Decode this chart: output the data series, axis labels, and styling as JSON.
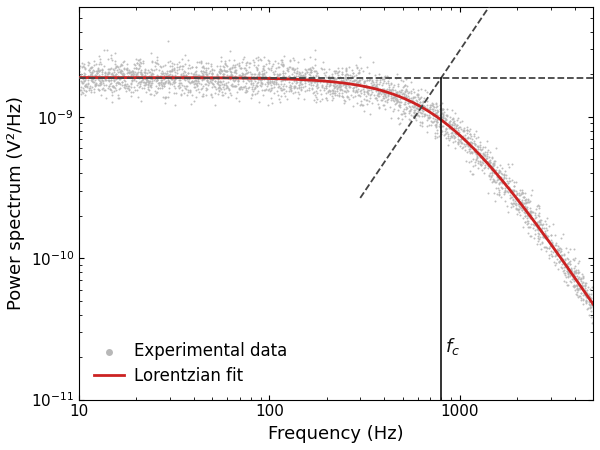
{
  "fc": 800,
  "S0": 1.9e-09,
  "freq_min": 10,
  "freq_max": 5000,
  "ylim_min": 1e-11,
  "ylim_max": 6e-09,
  "xlabel": "Frequency (Hz)",
  "ylabel": "Power spectrum (V²/Hz)",
  "legend_entries": [
    "Experimental data",
    "Lorentzian fit"
  ],
  "data_color": "#b8b8b8",
  "fit_color": "#cc2222",
  "dashed_line_color": "#444444",
  "vertical_line_color": "#111111",
  "annotation_fontsize": 13,
  "axis_label_fontsize": 13,
  "tick_label_fontsize": 11,
  "legend_fontsize": 12,
  "n_data_points": 3000,
  "noise_sigma": 0.15,
  "seed": 42
}
